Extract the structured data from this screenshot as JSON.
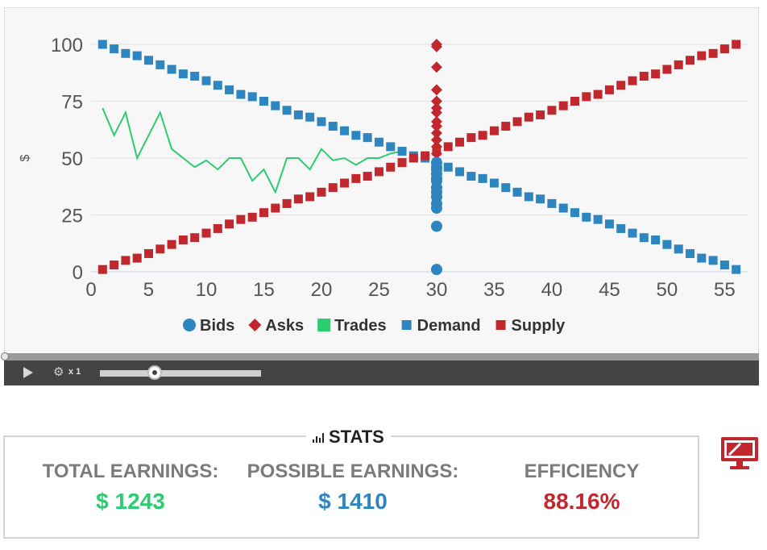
{
  "chart_data": {
    "type": "scatter",
    "title": "",
    "xlabel": "",
    "ylabel": "$",
    "xlim": [
      0,
      57
    ],
    "ylim": [
      0,
      100
    ],
    "xticks": [
      0,
      5,
      10,
      15,
      20,
      25,
      30,
      35,
      40,
      45,
      50,
      55
    ],
    "yticks": [
      0,
      25,
      50,
      75,
      100
    ],
    "grid": true,
    "legend_position": "bottom",
    "series": [
      {
        "name": "Bids",
        "marker": "circle",
        "color": "#2e86c1",
        "x": [
          30,
          30,
          30,
          30,
          30,
          30,
          30,
          30,
          30,
          30,
          30,
          30,
          30
        ],
        "y": [
          1,
          20,
          28,
          30,
          33,
          35,
          37,
          40,
          41,
          43,
          45,
          46,
          48
        ]
      },
      {
        "name": "Asks",
        "marker": "diamond",
        "color": "#c0282e",
        "x": [
          30,
          30,
          30,
          30,
          30,
          30,
          30,
          30,
          30,
          30,
          30,
          30,
          30
        ],
        "y": [
          52,
          55,
          58,
          61,
          64,
          66,
          70,
          72,
          75,
          80,
          90,
          99,
          100
        ]
      },
      {
        "name": "Trades",
        "marker": "line",
        "color": "#2ecc71",
        "x": [
          1,
          2,
          3,
          4,
          5,
          6,
          7,
          8,
          9,
          10,
          11,
          12,
          13,
          14,
          15,
          16,
          17,
          18,
          19,
          20,
          21,
          22,
          23,
          24,
          25,
          26,
          27
        ],
        "y": [
          72,
          60,
          70,
          50,
          60,
          70,
          54,
          50,
          46,
          49,
          45,
          50,
          50,
          40,
          45,
          35,
          50,
          50,
          45,
          54,
          49,
          50,
          47,
          50,
          50,
          52,
          53
        ]
      },
      {
        "name": "Demand",
        "marker": "square",
        "color": "#2e86c1",
        "x": [
          1,
          2,
          3,
          4,
          5,
          6,
          7,
          8,
          9,
          10,
          11,
          12,
          13,
          14,
          15,
          16,
          17,
          18,
          19,
          20,
          21,
          22,
          23,
          24,
          25,
          26,
          27,
          28,
          29,
          30,
          31,
          32,
          33,
          34,
          35,
          36,
          37,
          38,
          39,
          40,
          41,
          42,
          43,
          44,
          45,
          46,
          47,
          48,
          49,
          50,
          51,
          52,
          53,
          54,
          55,
          56
        ],
        "y": [
          100,
          98,
          96,
          95,
          93,
          91,
          89,
          87,
          86,
          84,
          82,
          80,
          78,
          77,
          75,
          73,
          71,
          69,
          68,
          66,
          64,
          62,
          60,
          59,
          57,
          55,
          53,
          51,
          50,
          48,
          46,
          44,
          42,
          41,
          39,
          37,
          35,
          33,
          32,
          30,
          28,
          26,
          24,
          23,
          21,
          19,
          17,
          15,
          14,
          12,
          10,
          8,
          6,
          5,
          3,
          1
        ]
      },
      {
        "name": "Supply",
        "marker": "square",
        "color": "#c0282e",
        "x": [
          1,
          2,
          3,
          4,
          5,
          6,
          7,
          8,
          9,
          10,
          11,
          12,
          13,
          14,
          15,
          16,
          17,
          18,
          19,
          20,
          21,
          22,
          23,
          24,
          25,
          26,
          27,
          28,
          29,
          30,
          31,
          32,
          33,
          34,
          35,
          36,
          37,
          38,
          39,
          40,
          41,
          42,
          43,
          44,
          45,
          46,
          47,
          48,
          49,
          50,
          51,
          52,
          53,
          54,
          55,
          56
        ],
        "y": [
          1,
          3,
          5,
          6,
          8,
          10,
          12,
          14,
          15,
          17,
          19,
          21,
          23,
          24,
          26,
          28,
          30,
          32,
          33,
          35,
          37,
          39,
          41,
          42,
          44,
          46,
          48,
          50,
          51,
          53,
          55,
          57,
          59,
          60,
          62,
          64,
          66,
          68,
          69,
          71,
          73,
          75,
          77,
          78,
          80,
          82,
          84,
          86,
          87,
          89,
          91,
          93,
          95,
          96,
          98,
          100
        ]
      }
    ]
  },
  "player": {
    "speed_label": "x 1",
    "progress": 0,
    "speed_position": 0.34
  },
  "stats": {
    "title": "STATS",
    "total_label": "TOTAL EARNINGS:",
    "total_value": "$ 1243",
    "possible_label": "POSSIBLE EARNINGS:",
    "possible_value": "$ 1410",
    "efficiency_label": "EFFICIENCY",
    "efficiency_value": "88.16%"
  },
  "colors": {
    "total": "#2ecc71",
    "possible": "#2e86c1",
    "efficiency": "#c0282e",
    "monitor": "#c0282e"
  },
  "icons": {
    "play": "play-icon",
    "settings": "gear-icon",
    "stats": "bar-chart-icon",
    "monitor": "monitor-icon"
  }
}
